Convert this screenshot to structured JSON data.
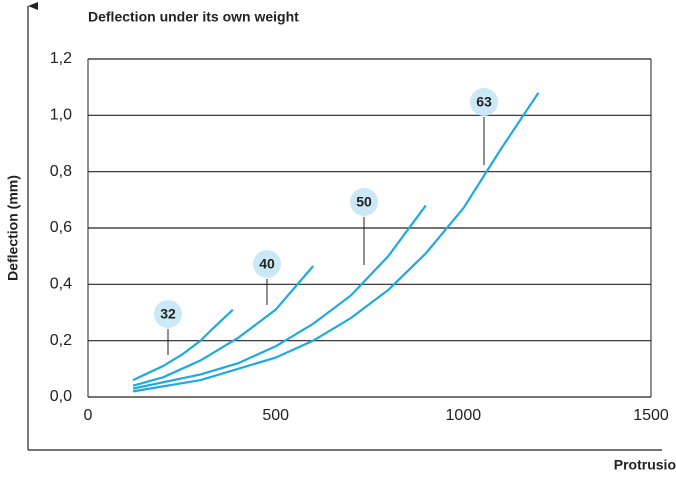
{
  "chart_data": {
    "type": "line",
    "title": "Deflection under its own weight",
    "y_label": "Deflection (mm)",
    "x_label": "Protrusio",
    "xlim": [
      0,
      1500
    ],
    "xticks": [
      0,
      500,
      1000,
      1500
    ],
    "ylim": [
      0,
      1.2
    ],
    "yticks": [
      {
        "value": 0,
        "label": "0,0"
      },
      {
        "value": 0.2,
        "label": "0,2"
      },
      {
        "value": 0.4,
        "label": "0,4"
      },
      {
        "value": 0.6,
        "label": "0,6"
      },
      {
        "value": 0.8,
        "label": "0,8"
      },
      {
        "value": 1.0,
        "label": "1,0"
      },
      {
        "value": 1.2,
        "label": "1,2"
      }
    ],
    "grid": true,
    "series": [
      {
        "name": "32",
        "color": "#1ea9e1",
        "x": [
          120,
          200,
          250,
          300,
          330,
          386
        ],
        "values": [
          0.06,
          0.11,
          0.15,
          0.2,
          0.24,
          0.31
        ]
      },
      {
        "name": "40",
        "color": "#1ea9e1",
        "x": [
          120,
          200,
          300,
          400,
          500,
          600
        ],
        "values": [
          0.04,
          0.07,
          0.13,
          0.21,
          0.31,
          0.465
        ]
      },
      {
        "name": "50",
        "color": "#1ea9e1",
        "x": [
          120,
          300,
          400,
          500,
          600,
          700,
          800,
          900
        ],
        "values": [
          0.03,
          0.08,
          0.12,
          0.18,
          0.26,
          0.36,
          0.5,
          0.68
        ]
      },
      {
        "name": "63",
        "color": "#1ea9e1",
        "x": [
          120,
          300,
          500,
          600,
          700,
          800,
          900,
          1000,
          1100,
          1200
        ],
        "values": [
          0.02,
          0.06,
          0.14,
          0.2,
          0.28,
          0.38,
          0.51,
          0.67,
          0.88,
          1.08
        ]
      }
    ]
  }
}
